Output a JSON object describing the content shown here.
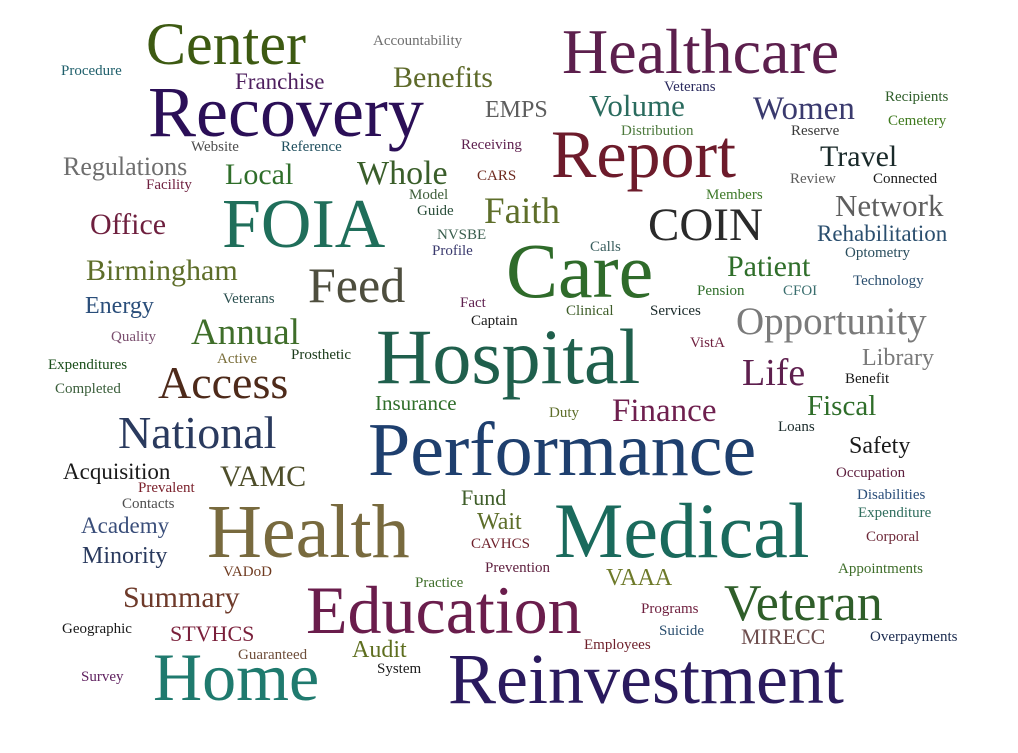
{
  "words": [
    {
      "text": "Center",
      "color": "#3d5a12"
    },
    {
      "text": "Healthcare",
      "color": "#5c1f4d"
    },
    {
      "text": "Recovery",
      "color": "#2b0f57"
    },
    {
      "text": "Report",
      "color": "#6d1b2b"
    },
    {
      "text": "FOIA",
      "color": "#1f6e5a"
    },
    {
      "text": "Care",
      "color": "#2f6b2a"
    },
    {
      "text": "Hospital",
      "color": "#1f5f4c"
    },
    {
      "text": "Performance",
      "color": "#1e3f6e"
    },
    {
      "text": "Health",
      "color": "#786a3e"
    },
    {
      "text": "Medical",
      "color": "#1a6a5c"
    },
    {
      "text": "Education",
      "color": "#6a1d4c"
    },
    {
      "text": "Home",
      "color": "#1f7a6e"
    },
    {
      "text": "Reinvestment",
      "color": "#2a1a5e"
    },
    {
      "text": "Veteran",
      "color": "#2f5e2a"
    },
    {
      "text": "Accountability",
      "color": "#6e6e6e"
    },
    {
      "text": "Procedure",
      "color": "#1f5f6b"
    },
    {
      "text": "Franchise",
      "color": "#4e1f5e"
    },
    {
      "text": "Benefits",
      "color": "#5e6a2a"
    },
    {
      "text": "Veterans",
      "color": "#2a2a5e"
    },
    {
      "text": "Recipients",
      "color": "#2f5e2a"
    },
    {
      "text": "EMPS",
      "color": "#5e5e5e"
    },
    {
      "text": "Volume",
      "color": "#2a6b5e"
    },
    {
      "text": "Women",
      "color": "#3a3a6e"
    },
    {
      "text": "Cemetery",
      "color": "#3f7a1e"
    },
    {
      "text": "Distribution",
      "color": "#4e7a3e"
    },
    {
      "text": "Reserve",
      "color": "#3a3a3a"
    },
    {
      "text": "Regulations",
      "color": "#6e6e6e"
    },
    {
      "text": "Website",
      "color": "#4e4e4e"
    },
    {
      "text": "Reference",
      "color": "#1f4f5e"
    },
    {
      "text": "Receiving",
      "color": "#5e1f4e"
    },
    {
      "text": "Travel",
      "color": "#1a2a2a"
    },
    {
      "text": "Facility",
      "color": "#6e1f3e"
    },
    {
      "text": "Local",
      "color": "#2f6e2a"
    },
    {
      "text": "Whole",
      "color": "#3a5e2a"
    },
    {
      "text": "CARS",
      "color": "#6e2a1f"
    },
    {
      "text": "Review",
      "color": "#5e5e5e"
    },
    {
      "text": "Connected",
      "color": "#1a1a1a"
    },
    {
      "text": "Model",
      "color": "#3f5e3a"
    },
    {
      "text": "Members",
      "color": "#3f7a2a"
    },
    {
      "text": "Guide",
      "color": "#2a4e3a"
    },
    {
      "text": "Faith",
      "color": "#5e6e2a"
    },
    {
      "text": "Network",
      "color": "#5e5e5e"
    },
    {
      "text": "Office",
      "color": "#6e1f3e"
    },
    {
      "text": "COIN",
      "color": "#2a2a2a"
    },
    {
      "text": "NVSBE",
      "color": "#3a5e4e"
    },
    {
      "text": "Rehabilitation",
      "color": "#2a4e6e"
    },
    {
      "text": "Calls",
      "color": "#3a5e5e"
    },
    {
      "text": "Profile",
      "color": "#3a3a6e"
    },
    {
      "text": "Optometry",
      "color": "#2a4e5e"
    },
    {
      "text": "Birmingham",
      "color": "#5e6e2a"
    },
    {
      "text": "Feed",
      "color": "#4e4e3e"
    },
    {
      "text": "Patient",
      "color": "#2f6e2a"
    },
    {
      "text": "Technology",
      "color": "#2a4e6e"
    },
    {
      "text": "Energy",
      "color": "#2a4e7a"
    },
    {
      "text": "Veterans",
      "color": "#2a4e4e"
    },
    {
      "text": "Fact",
      "color": "#5e1f4e"
    },
    {
      "text": "Pension",
      "color": "#2f6e2a"
    },
    {
      "text": "CFOI",
      "color": "#3a6e6e"
    },
    {
      "text": "Captain",
      "color": "#1a1a1a"
    },
    {
      "text": "Clinical",
      "color": "#3f5e2a"
    },
    {
      "text": "Services",
      "color": "#1a2a2a"
    },
    {
      "text": "Opportunity",
      "color": "#7a7a7a"
    },
    {
      "text": "Quality",
      "color": "#7a4e6e"
    },
    {
      "text": "Annual",
      "color": "#3f6e2a"
    },
    {
      "text": "Expenditures",
      "color": "#1a4e1a"
    },
    {
      "text": "Active",
      "color": "#7a6e3a"
    },
    {
      "text": "Prosthetic",
      "color": "#1a3a1a"
    },
    {
      "text": "VistA",
      "color": "#6e1f3e"
    },
    {
      "text": "Library",
      "color": "#7a7a7a"
    },
    {
      "text": "Completed",
      "color": "#3a5e3a"
    },
    {
      "text": "Access",
      "color": "#4e2a1a"
    },
    {
      "text": "Life",
      "color": "#5e1f4e"
    },
    {
      "text": "Benefit",
      "color": "#1a1a1a"
    },
    {
      "text": "Insurance",
      "color": "#2f6e2a"
    },
    {
      "text": "Finance",
      "color": "#6e1f4e"
    },
    {
      "text": "Fiscal",
      "color": "#2f6e2a"
    },
    {
      "text": "Duty",
      "color": "#5e6e2a"
    },
    {
      "text": "National",
      "color": "#2a3a5e"
    },
    {
      "text": "Loans",
      "color": "#1a2a2a"
    },
    {
      "text": "Safety",
      "color": "#1a1a1a"
    },
    {
      "text": "Acquisition",
      "color": "#1a1a1a"
    },
    {
      "text": "Occupation",
      "color": "#5e1f3e"
    },
    {
      "text": "VAMC",
      "color": "#4e4e2a"
    },
    {
      "text": "Prevalent",
      "color": "#7a1f2a"
    },
    {
      "text": "Disabilities",
      "color": "#2a4e7a"
    },
    {
      "text": "Contacts",
      "color": "#4e4e4e"
    },
    {
      "text": "Fund",
      "color": "#3f5e2a"
    },
    {
      "text": "Expenditure",
      "color": "#2f6e5e"
    },
    {
      "text": "Academy",
      "color": "#3a4e7a"
    },
    {
      "text": "Wait",
      "color": "#5e6e2a"
    },
    {
      "text": "Corporal",
      "color": "#6e2a3a"
    },
    {
      "text": "Minority",
      "color": "#2a3a5e"
    },
    {
      "text": "CAVHCS",
      "color": "#6e1f2a"
    },
    {
      "text": "VADoD",
      "color": "#6e3a1f"
    },
    {
      "text": "Prevention",
      "color": "#5e1f3e"
    },
    {
      "text": "VAAA",
      "color": "#6e7a2a"
    },
    {
      "text": "Appointments",
      "color": "#3f6e2a"
    },
    {
      "text": "Practice",
      "color": "#3f6e2a"
    },
    {
      "text": "Summary",
      "color": "#6e3a2a"
    },
    {
      "text": "Programs",
      "color": "#6e1f3e"
    },
    {
      "text": "Geographic",
      "color": "#1a1a1a"
    },
    {
      "text": "STVHCS",
      "color": "#7a1f3a"
    },
    {
      "text": "Suicide",
      "color": "#2a4e6e"
    },
    {
      "text": "MIRECC",
      "color": "#6e4e4e"
    },
    {
      "text": "Overpayments",
      "color": "#1a2a4e"
    },
    {
      "text": "Employees",
      "color": "#6e1f2a"
    },
    {
      "text": "Audit",
      "color": "#5e6e1f"
    },
    {
      "text": "Guaranteed",
      "color": "#6e4e3a"
    },
    {
      "text": "System",
      "color": "#1a1a1a"
    },
    {
      "text": "Survey",
      "color": "#5e1f5e"
    }
  ]
}
